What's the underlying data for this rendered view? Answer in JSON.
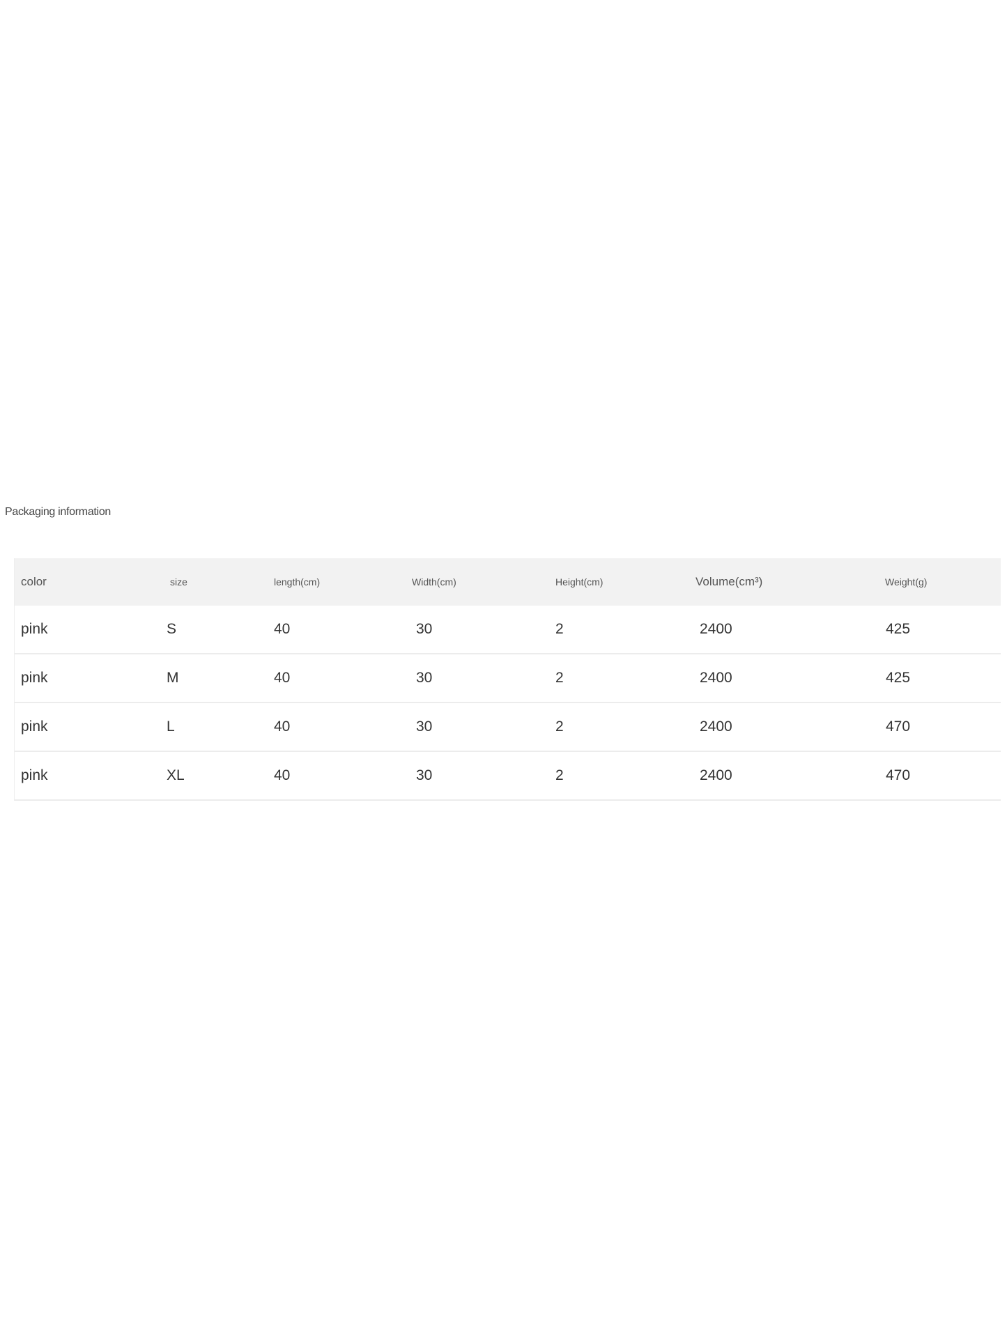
{
  "title": "Packaging information",
  "table": {
    "headers": [
      "color",
      "size",
      "length(cm)",
      "Width(cm)",
      "Height(cm)",
      "Volume(cm³)",
      "Weight(g)"
    ],
    "rows": [
      [
        "pink",
        "S",
        "40",
        "30",
        "2",
        "2400",
        "425"
      ],
      [
        "pink",
        "M",
        "40",
        "30",
        "2",
        "2400",
        "425"
      ],
      [
        "pink",
        "L",
        "40",
        "30",
        "2",
        "2400",
        "470"
      ],
      [
        "pink",
        "XL",
        "40",
        "30",
        "2",
        "2400",
        "470"
      ]
    ]
  },
  "colors": {
    "header_bg": "#f2f2f2",
    "divider": "#ececec"
  }
}
